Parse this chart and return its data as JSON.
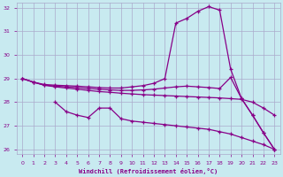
{
  "background_color": "#c8eaf0",
  "grid_color": "#aaaacc",
  "line_color": "#880088",
  "xlabel": "Windchill (Refroidissement éolien,°C)",
  "xlabel_color": "#880088",
  "tick_color": "#880088",
  "xlim": [
    -0.5,
    23.5
  ],
  "ylim": [
    25.8,
    32.2
  ],
  "yticks": [
    26,
    27,
    28,
    29,
    30,
    31,
    32
  ],
  "xticks": [
    0,
    1,
    2,
    3,
    4,
    5,
    6,
    7,
    8,
    9,
    10,
    11,
    12,
    13,
    14,
    15,
    16,
    17,
    18,
    19,
    20,
    21,
    22,
    23
  ],
  "curveA_x": [
    0,
    1,
    2,
    3,
    4,
    5,
    6,
    7,
    8,
    9,
    10,
    11,
    12,
    13,
    14,
    15,
    16,
    17,
    18,
    19,
    20,
    21,
    22,
    23
  ],
  "curveA_y": [
    29.0,
    28.85,
    28.75,
    28.72,
    28.7,
    28.68,
    28.65,
    28.62,
    28.6,
    28.6,
    28.65,
    28.7,
    28.8,
    29.0,
    31.35,
    31.55,
    31.85,
    32.05,
    31.9,
    29.4,
    28.15,
    27.45,
    26.7,
    26.0
  ],
  "curveB_x": [
    0,
    1,
    2,
    3,
    4,
    5,
    6,
    7,
    8,
    9,
    10,
    11,
    12,
    13,
    14,
    15,
    16,
    17,
    18,
    19,
    20,
    21,
    22,
    23
  ],
  "curveB_y": [
    29.0,
    28.85,
    28.72,
    28.68,
    28.65,
    28.62,
    28.58,
    28.55,
    28.52,
    28.5,
    28.5,
    28.52,
    28.55,
    28.6,
    28.65,
    28.68,
    28.65,
    28.62,
    28.58,
    29.05,
    28.15,
    27.45,
    26.7,
    26.0
  ],
  "curveC_x": [
    0,
    1,
    2,
    3,
    4,
    5,
    6,
    7,
    8,
    9,
    10,
    11,
    12,
    13,
    14,
    15,
    16,
    17,
    18,
    19,
    20,
    21,
    22,
    23
  ],
  "curveC_y": [
    29.0,
    28.85,
    28.72,
    28.65,
    28.6,
    28.55,
    28.5,
    28.45,
    28.42,
    28.38,
    28.35,
    28.32,
    28.3,
    28.28,
    28.26,
    28.24,
    28.22,
    28.2,
    28.18,
    28.15,
    28.12,
    28.0,
    27.75,
    27.45
  ],
  "curveD_x": [
    3,
    4,
    5,
    6,
    7,
    8,
    9,
    10,
    11,
    12,
    13,
    14,
    15,
    16,
    17,
    18,
    19,
    20,
    21,
    22,
    23
  ],
  "curveD_y": [
    28.0,
    27.6,
    27.45,
    27.35,
    27.75,
    27.75,
    27.3,
    27.2,
    27.15,
    27.1,
    27.05,
    27.0,
    26.95,
    26.9,
    26.85,
    26.75,
    26.65,
    26.5,
    26.35,
    26.2,
    26.0
  ]
}
